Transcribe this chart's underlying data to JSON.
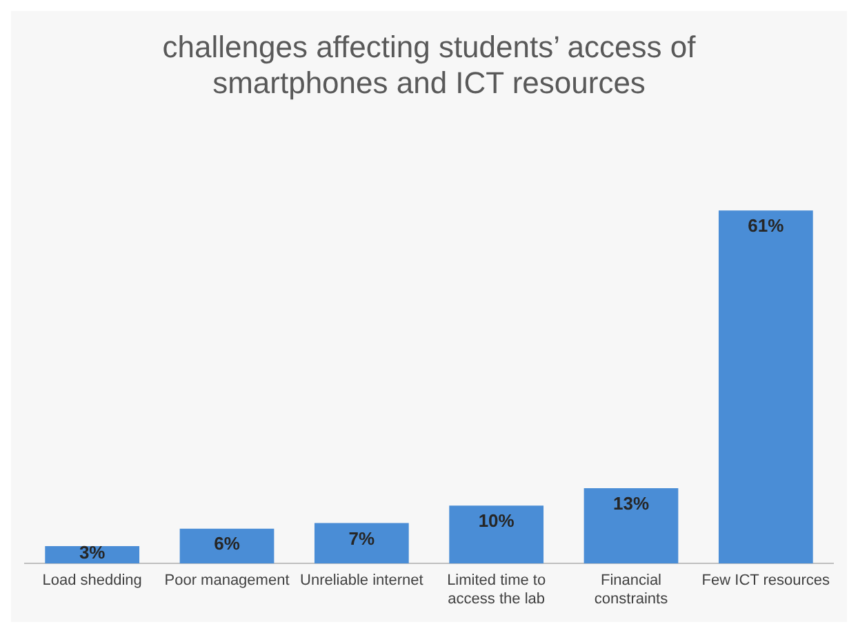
{
  "chart_data": {
    "type": "bar",
    "title": "challenges affecting students’ access of smartphones and ICT resources",
    "categories": [
      "Load shedding",
      "Poor management",
      "Unreliable internet",
      "Limited time to access the lab",
      "Financial constraints",
      "Few ICT resources"
    ],
    "values": [
      3,
      6,
      7,
      10,
      13,
      61
    ],
    "value_labels": [
      "3%",
      "6%",
      "7%",
      "10%",
      "13%",
      "61%"
    ],
    "color": "#4a8dd6",
    "grid": false,
    "legend": false
  }
}
